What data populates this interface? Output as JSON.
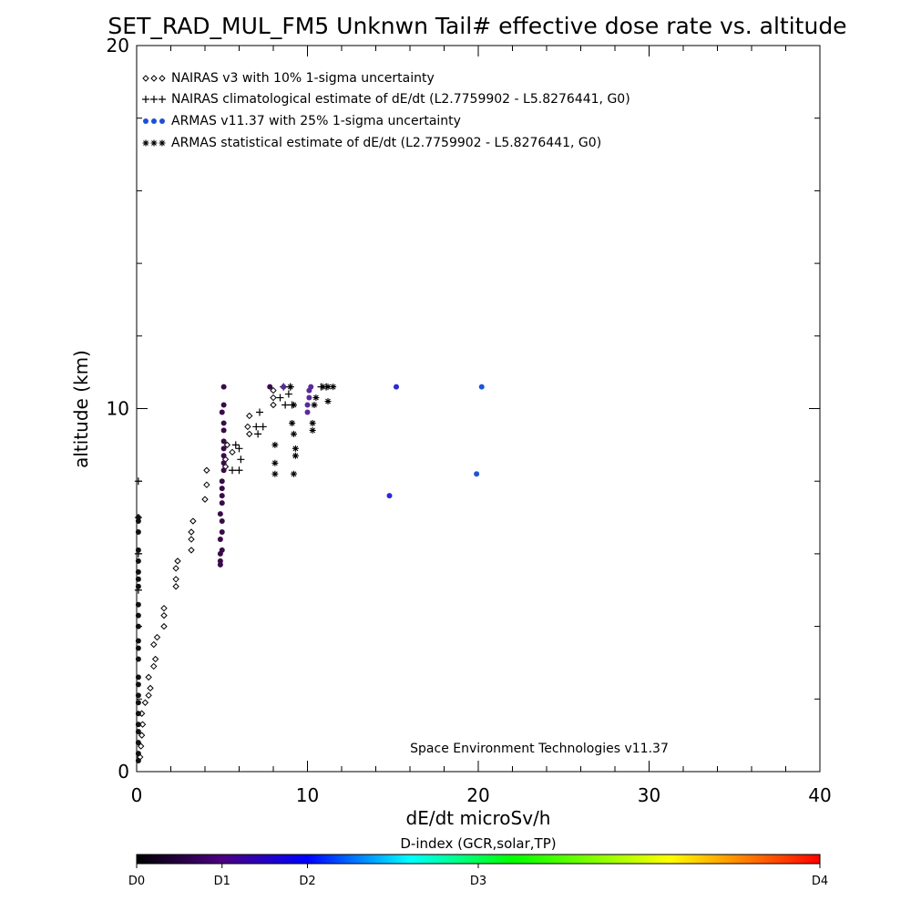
{
  "chart_data": {
    "type": "scatter",
    "title": "SET_RAD_MUL_FM5 Unknwn Tail#  effective dose rate vs. altitude",
    "xlabel": "dE/dt microSv/h",
    "ylabel": "altitude (km)",
    "xlim": [
      0,
      40
    ],
    "ylim": [
      0,
      20
    ],
    "x_ticks": [
      "0",
      "10",
      "20",
      "30",
      "40"
    ],
    "y_ticks": [
      "0",
      "10",
      "20"
    ],
    "grid": false,
    "legend_position": "top-left",
    "annotation": "Space Environment Technologies v11.37",
    "series": [
      {
        "name": "NAIRAS v3 with 10% 1-sigma uncertainty",
        "marker": "diamond",
        "color": "#000000",
        "points": [
          [
            0.2,
            0.4
          ],
          [
            0.25,
            0.7
          ],
          [
            0.3,
            1.0
          ],
          [
            0.35,
            1.3
          ],
          [
            0.3,
            1.6
          ],
          [
            0.5,
            1.9
          ],
          [
            0.7,
            2.1
          ],
          [
            0.8,
            2.3
          ],
          [
            0.7,
            2.6
          ],
          [
            1.0,
            2.9
          ],
          [
            1.1,
            3.1
          ],
          [
            1.0,
            3.5
          ],
          [
            1.2,
            3.7
          ],
          [
            1.6,
            4.0
          ],
          [
            1.6,
            4.3
          ],
          [
            1.6,
            4.5
          ],
          [
            2.3,
            5.1
          ],
          [
            2.3,
            5.3
          ],
          [
            2.3,
            5.6
          ],
          [
            2.4,
            5.8
          ],
          [
            3.2,
            6.1
          ],
          [
            3.2,
            6.4
          ],
          [
            3.2,
            6.6
          ],
          [
            3.3,
            6.9
          ],
          [
            4.0,
            7.5
          ],
          [
            4.1,
            7.9
          ],
          [
            4.1,
            8.3
          ],
          [
            5.2,
            8.4
          ],
          [
            5.2,
            8.6
          ],
          [
            5.6,
            8.8
          ],
          [
            5.3,
            9.0
          ],
          [
            6.6,
            9.3
          ],
          [
            6.5,
            9.5
          ],
          [
            6.6,
            9.8
          ],
          [
            8.0,
            10.1
          ],
          [
            8.0,
            10.3
          ],
          [
            8.0,
            10.5
          ]
        ]
      },
      {
        "name": "NAIRAS climatological estimate of dE/dt (L2.7759902 - L5.8276441, G0)",
        "marker": "plus",
        "color": "#000000",
        "points": [
          [
            0.1,
            5.0
          ],
          [
            0.1,
            6.0
          ],
          [
            0.1,
            7.0
          ],
          [
            0.1,
            8.0
          ],
          [
            5.6,
            8.3
          ],
          [
            6.0,
            8.3
          ],
          [
            6.1,
            8.6
          ],
          [
            6.0,
            8.9
          ],
          [
            5.8,
            9.0
          ],
          [
            7.1,
            9.3
          ],
          [
            7.0,
            9.5
          ],
          [
            7.4,
            9.5
          ],
          [
            7.2,
            9.9
          ],
          [
            8.7,
            10.1
          ],
          [
            9.1,
            10.1
          ],
          [
            8.4,
            10.3
          ],
          [
            8.9,
            10.4
          ],
          [
            8.6,
            10.6
          ],
          [
            9.0,
            10.6
          ],
          [
            10.8,
            10.6
          ],
          [
            11.1,
            10.6
          ]
        ]
      },
      {
        "name": "ARMAS v11.37 with 25% 1-sigma uncertainty",
        "marker": "dot",
        "color": "#1c50d8",
        "points": [
          [
            0.1,
            0.3
          ],
          [
            0.1,
            0.5
          ],
          [
            0.1,
            0.8
          ],
          [
            0.1,
            1.1
          ],
          [
            0.1,
            1.3
          ],
          [
            0.1,
            1.6
          ],
          [
            0.1,
            1.9
          ],
          [
            0.1,
            2.1
          ],
          [
            0.1,
            2.4
          ],
          [
            0.1,
            2.6
          ],
          [
            0.1,
            3.1
          ],
          [
            0.1,
            3.4
          ],
          [
            0.1,
            3.6
          ],
          [
            0.1,
            4.0
          ],
          [
            0.1,
            4.3
          ],
          [
            0.1,
            4.6
          ],
          [
            0.1,
            5.1
          ],
          [
            0.1,
            5.3
          ],
          [
            0.1,
            5.5
          ],
          [
            0.1,
            5.8
          ],
          [
            0.1,
            6.1
          ],
          [
            0.1,
            6.6
          ],
          [
            0.1,
            6.9
          ],
          [
            0.1,
            7.0
          ],
          [
            4.9,
            5.7
          ],
          [
            4.9,
            5.8
          ],
          [
            4.9,
            6.0
          ],
          [
            5.0,
            6.1
          ],
          [
            4.9,
            6.4
          ],
          [
            5.0,
            6.6
          ],
          [
            5.0,
            6.9
          ],
          [
            4.9,
            7.1
          ],
          [
            5.0,
            7.4
          ],
          [
            5.0,
            7.6
          ],
          [
            5.0,
            7.8
          ],
          [
            5.0,
            8.0
          ],
          [
            5.1,
            8.3
          ],
          [
            5.1,
            8.5
          ],
          [
            5.1,
            8.7
          ],
          [
            5.1,
            8.9
          ],
          [
            5.1,
            9.1
          ],
          [
            5.1,
            9.4
          ],
          [
            5.1,
            9.6
          ],
          [
            5.0,
            9.9
          ],
          [
            5.1,
            10.1
          ],
          [
            5.1,
            10.6
          ],
          [
            7.8,
            10.6
          ],
          [
            8.6,
            10.6
          ],
          [
            10.0,
            9.9
          ],
          [
            10.0,
            10.1
          ],
          [
            10.1,
            10.3
          ],
          [
            10.1,
            10.5
          ],
          [
            10.2,
            10.6
          ],
          [
            14.8,
            7.6
          ],
          [
            15.2,
            10.6
          ],
          [
            19.9,
            8.2
          ],
          [
            20.2,
            10.6
          ]
        ]
      },
      {
        "name": "ARMAS statistical estimate of dE/dt (L2.7759902 - L5.8276441, G0)",
        "marker": "asterisk",
        "color": "#000000",
        "points": [
          [
            8.1,
            8.2
          ],
          [
            8.1,
            8.5
          ],
          [
            8.1,
            9.0
          ],
          [
            9.2,
            8.2
          ],
          [
            9.3,
            8.7
          ],
          [
            9.3,
            8.9
          ],
          [
            9.2,
            9.3
          ],
          [
            9.1,
            9.6
          ],
          [
            9.2,
            10.1
          ],
          [
            9.0,
            10.6
          ],
          [
            10.3,
            9.4
          ],
          [
            10.3,
            9.6
          ],
          [
            10.4,
            10.1
          ],
          [
            10.5,
            10.3
          ],
          [
            10.9,
            10.6
          ],
          [
            11.2,
            10.6
          ],
          [
            11.2,
            10.2
          ],
          [
            11.5,
            10.6
          ]
        ]
      }
    ],
    "colorbar": {
      "label": "D-index (GCR,solar,TP)",
      "ticks": [
        "D0",
        "D1",
        "D2",
        "D3",
        "D4"
      ],
      "tick_values": [
        0,
        1,
        2,
        3,
        4
      ],
      "tick_positions": [
        0,
        0.125,
        0.25,
        0.5,
        1.0
      ],
      "colors": [
        "#000000",
        "#4b0082",
        "#0000ff",
        "#00ffff",
        "#00ff00",
        "#ffff00",
        "#ff0000"
      ]
    }
  }
}
